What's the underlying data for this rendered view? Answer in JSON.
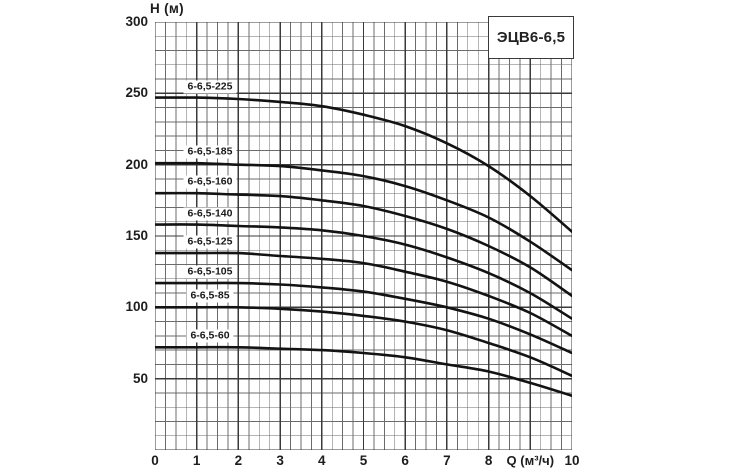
{
  "title_box": {
    "label": "ЭЦВ6-6,5"
  },
  "axes": {
    "y_title": "Н (м)",
    "x_title": "Q (м³/ч)"
  },
  "chart_data": {
    "type": "line",
    "title": "ЭЦВ6-6,5",
    "ylabel": "Н (м)",
    "xlabel": "Q (м³/ч)",
    "xlim": [
      0,
      10
    ],
    "ylim": [
      0,
      300
    ],
    "grid": "on, dense minor grid",
    "x_minor_step": 0.25,
    "y_minor_step": 10,
    "x_major_step": 1,
    "y_major_step": 50,
    "x_ticks": [
      {
        "v": 0,
        "label": "0"
      },
      {
        "v": 1,
        "label": "1"
      },
      {
        "v": 2,
        "label": "2"
      },
      {
        "v": 3,
        "label": "3"
      },
      {
        "v": 4,
        "label": "4"
      },
      {
        "v": 5,
        "label": "5"
      },
      {
        "v": 6,
        "label": "6"
      },
      {
        "v": 7,
        "label": "7"
      },
      {
        "v": 8,
        "label": "8"
      },
      {
        "v": 10,
        "label": "10"
      }
    ],
    "xlabel_position": 9,
    "y_ticks": [
      {
        "v": 50,
        "label": "50"
      },
      {
        "v": 100,
        "label": "100"
      },
      {
        "v": 150,
        "label": "150"
      },
      {
        "v": 200,
        "label": "200"
      },
      {
        "v": 250,
        "label": "250"
      },
      {
        "v": 300,
        "label": "300"
      }
    ],
    "x": [
      0,
      1,
      2,
      3,
      4,
      5,
      6,
      7,
      8,
      9,
      10
    ],
    "series": [
      {
        "label": "6-6,5-225",
        "values": [
          247,
          247,
          246,
          244,
          241,
          235,
          227,
          215,
          199,
          178,
          153
        ]
      },
      {
        "label": "6-6,5-185",
        "values": [
          201,
          201,
          200,
          199,
          196,
          192,
          185,
          175,
          163,
          146,
          126
        ]
      },
      {
        "label": "6-6,5-160",
        "values": [
          180,
          180,
          179,
          178,
          175,
          171,
          164,
          155,
          143,
          128,
          108
        ]
      },
      {
        "label": "6-6,5-140",
        "values": [
          158,
          158,
          157,
          156,
          154,
          150,
          144,
          135,
          124,
          110,
          92
        ]
      },
      {
        "label": "6-6,5-125",
        "values": [
          138,
          138,
          138,
          136,
          134,
          131,
          125,
          118,
          108,
          96,
          80
        ]
      },
      {
        "label": "6-6,5-105",
        "values": [
          117,
          117,
          117,
          116,
          114,
          111,
          106,
          100,
          92,
          81,
          68
        ]
      },
      {
        "label": "6-6,5-85",
        "values": [
          100,
          100,
          100,
          99,
          97,
          94,
          90,
          84,
          75,
          65,
          52
        ]
      },
      {
        "label": "6-6,5-60",
        "values": [
          72,
          72,
          72,
          71,
          70,
          68,
          65,
          60,
          55,
          47,
          38
        ]
      }
    ],
    "legend": "curve labels drawn inline at left side of each curve",
    "colors": {
      "curve": "#131313",
      "grid_major": "#3a3a3a",
      "grid_minor": "#6b6b6b",
      "background": "#ffffff",
      "text": "#1d1d1d"
    }
  }
}
